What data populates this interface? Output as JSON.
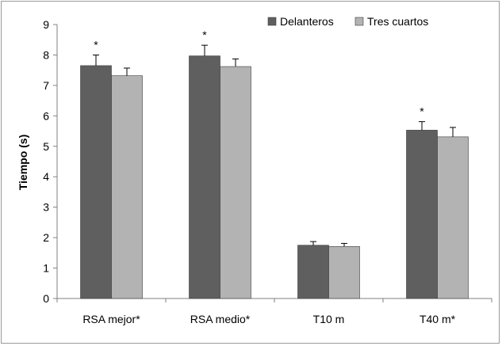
{
  "chart_data": {
    "type": "bar",
    "title": "",
    "xlabel": "",
    "ylabel": "Tiempo (s)",
    "ylim": [
      0,
      9
    ],
    "yticks": [
      0,
      1,
      2,
      3,
      4,
      5,
      6,
      7,
      8,
      9
    ],
    "categories": [
      "RSA mejor*",
      "RSA medio*",
      "T10 m",
      "T40 m*"
    ],
    "series": [
      {
        "name": "Delanteros",
        "color": "#5f5f5f",
        "values": [
          7.65,
          7.97,
          1.75,
          5.53
        ],
        "errors": [
          0.35,
          0.35,
          0.12,
          0.28
        ]
      },
      {
        "name": "Tres cuartos",
        "color": "#b3b3b3",
        "values": [
          7.32,
          7.62,
          1.71,
          5.31
        ],
        "errors": [
          0.25,
          0.25,
          0.1,
          0.31
        ]
      }
    ],
    "significance_markers": [
      {
        "category": "RSA mejor*",
        "series": "Delanteros",
        "label": "*"
      },
      {
        "category": "RSA medio*",
        "series": "Delanteros",
        "label": "*"
      },
      {
        "category": "T40 m*",
        "series": "Delanteros",
        "label": "*"
      }
    ],
    "legend_position": "top-right",
    "grid": false
  }
}
